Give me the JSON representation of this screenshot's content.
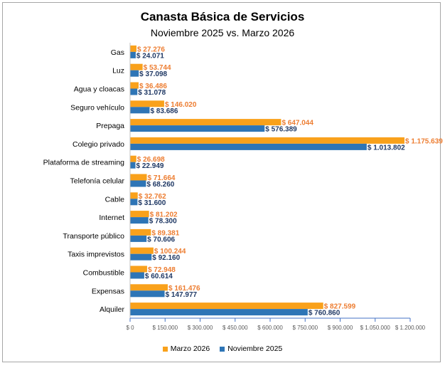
{
  "chart_data": {
    "type": "bar",
    "orientation": "horizontal",
    "title": "Canasta Básica de Servicios",
    "subtitle": "Noviembre  2025 vs. Marzo 2026",
    "categories": [
      "Gas",
      "Luz",
      "Agua y cloacas",
      "Seguro vehículo",
      "Prepaga",
      "Colegio privado",
      "Plataforma de streaming",
      "Telefonía celular",
      "Cable",
      "Internet",
      "Transporte público",
      "Taxis imprevistos",
      "Combustible",
      "Expensas",
      "Alquiler"
    ],
    "series": [
      {
        "name": "Marzo 2026",
        "color": "#F9A11B",
        "label_color": "#ED7D31",
        "values": [
          27276,
          53744,
          36486,
          146020,
          647044,
          1175639,
          26698,
          71664,
          32762,
          81202,
          89381,
          100244,
          72948,
          161476,
          827599
        ],
        "labels": [
          "$ 27.276",
          "$ 53.744",
          "$ 36.486",
          "$ 146.020",
          "$ 647.044",
          "$ 1.175.639",
          "$ 26.698",
          "$ 71.664",
          "$ 32.762",
          "$ 81.202",
          "$ 89.381",
          "$ 100.244",
          "$ 72.948",
          "$ 161.476",
          "$ 827.599"
        ]
      },
      {
        "name": "Noviembre 2025",
        "color": "#2E75B6",
        "label_color": "#1F3864",
        "values": [
          24071,
          37098,
          31078,
          83686,
          576389,
          1013802,
          22949,
          68260,
          31600,
          78300,
          70606,
          92160,
          60614,
          147977,
          760860
        ],
        "labels": [
          "$ 24.071",
          "$ 37.098",
          "$ 31.078",
          "$ 83.686",
          "$ 576.389",
          "$ 1.013.802",
          "$ 22.949",
          "$ 68.260",
          "$ 31.600",
          "$ 78.300",
          "$ 70.606",
          "$ 92.160",
          "$ 60.614",
          "$ 147.977",
          "$ 760.860"
        ]
      }
    ],
    "xlim": [
      0,
      1200000
    ],
    "xticks": [
      0,
      150000,
      300000,
      450000,
      600000,
      750000,
      900000,
      1050000,
      1200000
    ],
    "xtick_labels": [
      "$ 0",
      "$ 150.000",
      "$ 300.000",
      "$ 450.000",
      "$ 600.000",
      "$ 750.000",
      "$ 900.000",
      "$ 1.050.000",
      "$ 1.200.000"
    ],
    "grid": false,
    "legend_position": "bottom"
  }
}
